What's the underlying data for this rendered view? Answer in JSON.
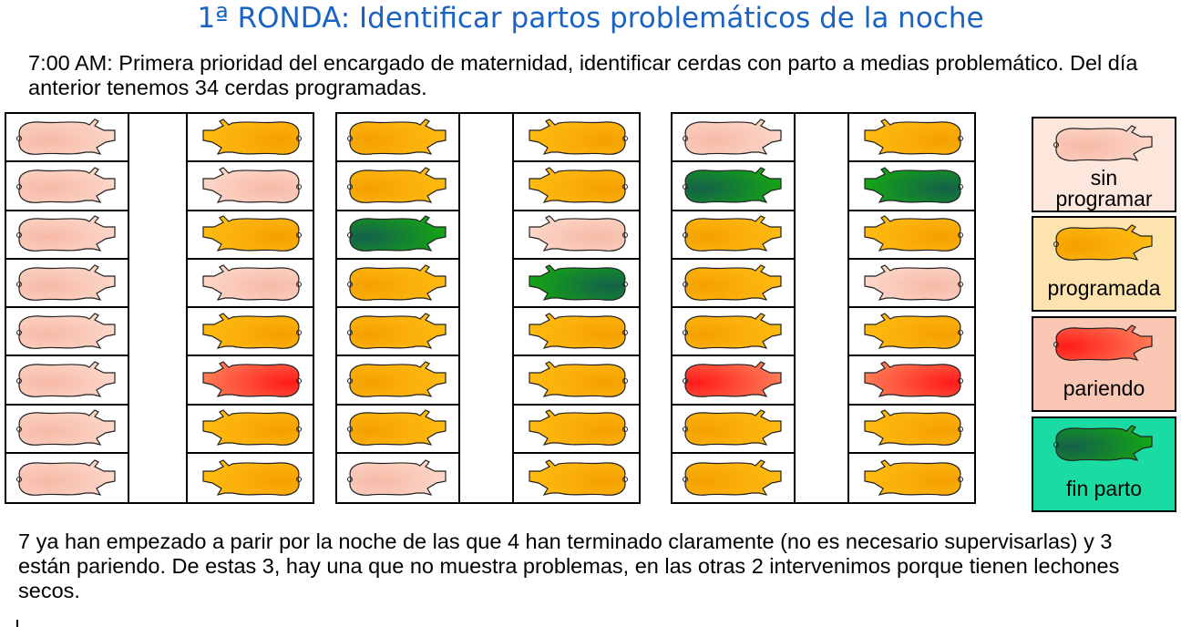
{
  "title": "1ª RONDA: Identificar partos problemáticos de la noche",
  "intro": "7:00 AM: Primera prioridad del encargado de maternidad, identificar cerdas con parto a medias problemático. Del día anterior tenemos 34 cerdas programadas.",
  "outro": "7 ya han empezado a parir por la noche de las que 4 han terminado claramente (no es necesario supervisarlas) y 3 están pariendo. De estas 3, hay una que no muestra problemas, en las otras 2 intervenimos porque tienen lechones secos.",
  "colors": {
    "sin": "#f9c9b8",
    "prog": "#ffb000",
    "par": "#ff3a30",
    "fin": "#158a10"
  },
  "blocks": [
    {
      "left": [
        "sin",
        "sin",
        "sin",
        "sin",
        "sin",
        "sin",
        "sin",
        "sin"
      ],
      "right": [
        "prog",
        "sin",
        "prog",
        "sin",
        "prog",
        "par",
        "prog",
        "prog"
      ]
    },
    {
      "left": [
        "prog",
        "prog",
        "fin",
        "prog",
        "prog",
        "prog",
        "prog",
        "sin"
      ],
      "right": [
        "prog",
        "prog",
        "sin",
        "fin",
        "prog",
        "prog",
        "prog",
        "prog"
      ]
    },
    {
      "left": [
        "sin",
        "fin",
        "prog",
        "prog",
        "prog",
        "par",
        "prog",
        "prog"
      ],
      "right": [
        "prog",
        "fin",
        "prog",
        "sin",
        "prog",
        "par",
        "prog",
        "prog"
      ]
    }
  ],
  "legend": [
    {
      "state": "sin",
      "label1": "sin",
      "label2": "programar",
      "bg": "#fde6dc"
    },
    {
      "state": "prog",
      "label1": "programada",
      "label2": "",
      "bg": "#fde3ae"
    },
    {
      "state": "par",
      "label1": "pariendo",
      "label2": "",
      "bg": "#fac7b5"
    },
    {
      "state": "fin",
      "label1": "fin parto",
      "label2": "",
      "bg": "#1adca3"
    }
  ]
}
